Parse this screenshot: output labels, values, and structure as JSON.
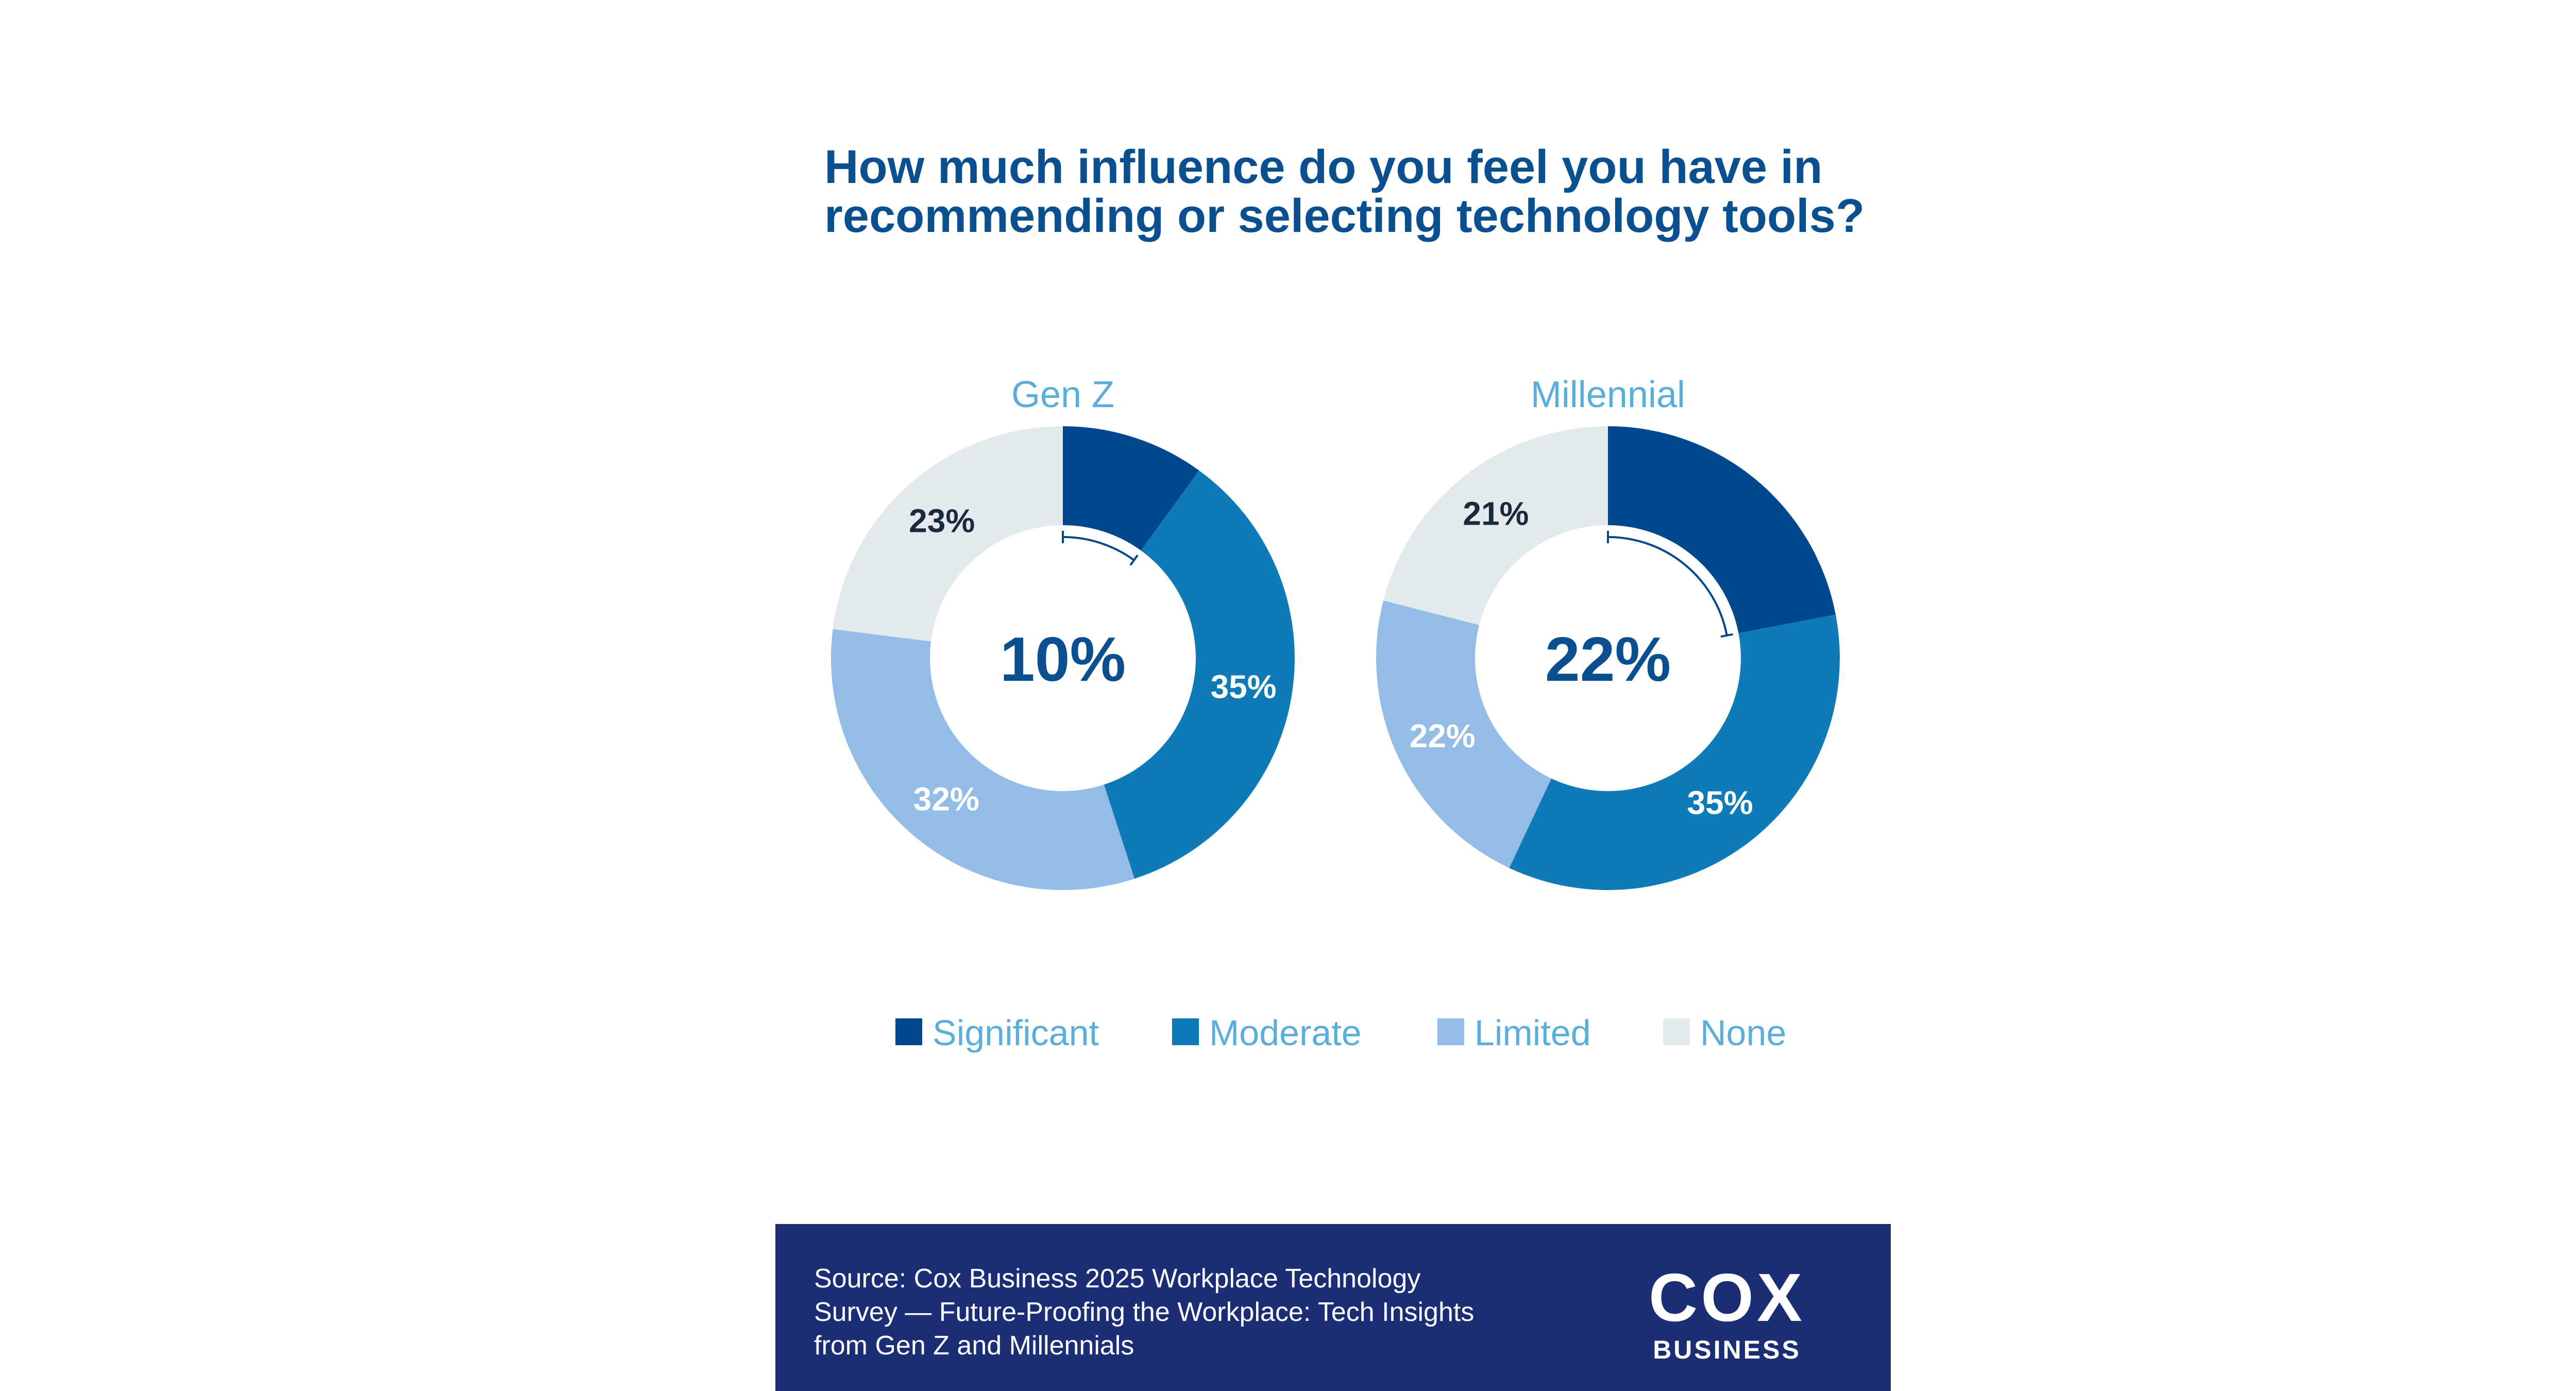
{
  "chart_data": {
    "type": "pie",
    "variant": "donut",
    "title_lines": [
      "How much influence do you feel you have in",
      "recommending or selecting technology tools?"
    ],
    "categories": [
      "Significant",
      "Moderate",
      "Limited",
      "None"
    ],
    "colors": [
      "#00488d",
      "#0e7bb8",
      "#93bde6",
      "#e2eaed"
    ],
    "label_colors": [
      "#ffffff",
      "#ffffff",
      "#ffffff",
      "#1a2a3a"
    ],
    "charts": [
      {
        "name": "Gen Z",
        "values": [
          10,
          35,
          32,
          23
        ],
        "labels": [
          "10%",
          "35%",
          "32%",
          "23%"
        ],
        "center_label": "10%"
      },
      {
        "name": "Millennial",
        "values": [
          22,
          35,
          22,
          21
        ],
        "labels": [
          "22%",
          "35%",
          "22%",
          "21%"
        ],
        "center_label": "22%"
      }
    ],
    "legend_position": "bottom"
  },
  "footer": {
    "source_lines": [
      "Source: Cox Business 2025 Workplace Technology",
      "Survey — Future-Proofing the Workplace: Tech Insights",
      "from Gen Z and Millennials"
    ],
    "logo_main": "COX",
    "logo_sub": "BUSINESS",
    "background_color": "#1b2e75"
  }
}
